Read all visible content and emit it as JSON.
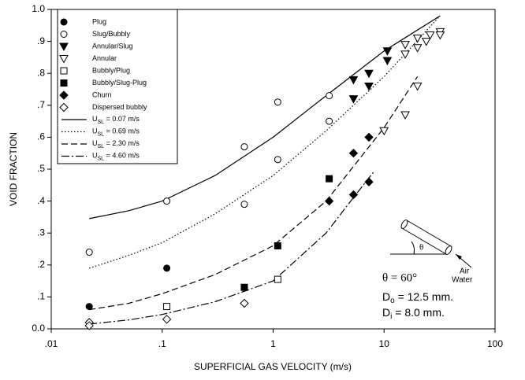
{
  "chart_data": {
    "type": "scatter",
    "xscale": "log",
    "x_label": "SUPERFICIAL GAS VELOCITY (m/s)",
    "y_label": "VOID FRACTION",
    "xlim": [
      0.01,
      100
    ],
    "ylim": [
      0,
      1
    ],
    "xticks": [
      {
        "value": 0.01,
        "label": ".01"
      },
      {
        "value": 0.1,
        "label": ".1"
      },
      1,
      10,
      100
    ],
    "yticks": [
      {
        "value": 0,
        "label": "0.0"
      },
      {
        "value": 0.1,
        "label": ".1"
      },
      {
        "value": 0.2,
        "label": ".2"
      },
      {
        "value": 0.3,
        "label": ".3"
      },
      {
        "value": 0.4,
        "label": ".4"
      },
      {
        "value": 0.5,
        "label": ".5"
      },
      {
        "value": 0.6,
        "label": ".6"
      },
      {
        "value": 0.7,
        "label": ".7"
      },
      {
        "value": 0.8,
        "label": ".8"
      },
      {
        "value": 0.9,
        "label": ".9"
      },
      {
        "value": 1,
        "label": "1.0"
      }
    ],
    "legend": "top-left",
    "series": [
      {
        "name": "Plug",
        "marker": "circle",
        "filled": true,
        "color": "#000000",
        "x": [
          0.022,
          0.11
        ],
        "values": [
          0.07,
          0.19
        ]
      },
      {
        "name": "Slug/Bubbly",
        "marker": "circle",
        "filled": false,
        "color": "#000000",
        "x": [
          0.022,
          0.11,
          0.55,
          0.55,
          1.1,
          1.1,
          3.2,
          3.2
        ],
        "values": [
          0.24,
          0.4,
          0.57,
          0.39,
          0.71,
          0.53,
          0.73,
          0.65
        ]
      },
      {
        "name": "Annular/Slug",
        "marker": "triangle-down",
        "filled": true,
        "color": "#000000",
        "x": [
          5.3,
          5.3,
          7.3,
          7.3,
          10.7,
          10.7
        ],
        "values": [
          0.78,
          0.72,
          0.8,
          0.76,
          0.87,
          0.84
        ]
      },
      {
        "name": "Annular",
        "marker": "triangle-down",
        "filled": false,
        "color": "#000000",
        "x": [
          10,
          15.5,
          15.5,
          15.5,
          20,
          20,
          20,
          24,
          26,
          32,
          32
        ],
        "values": [
          0.62,
          0.67,
          0.89,
          0.86,
          0.76,
          0.88,
          0.91,
          0.9,
          0.92,
          0.93,
          0.92
        ]
      },
      {
        "name": "Bubbly/Plug",
        "marker": "square",
        "filled": false,
        "color": "#000000",
        "x": [
          0.11,
          1.1
        ],
        "values": [
          0.07,
          0.155
        ]
      },
      {
        "name": "Bubbly/Slug-Plug",
        "marker": "square",
        "filled": true,
        "color": "#000000",
        "x": [
          0.55,
          1.1,
          3.2
        ],
        "values": [
          0.13,
          0.26,
          0.47
        ]
      },
      {
        "name": "Churn",
        "marker": "diamond",
        "filled": true,
        "color": "#000000",
        "x": [
          3.2,
          5.3,
          5.3,
          7.3,
          7.3
        ],
        "values": [
          0.4,
          0.55,
          0.42,
          0.6,
          0.46
        ]
      },
      {
        "name": "Dispersed bubbly",
        "marker": "diamond",
        "filled": false,
        "color": "#000000",
        "x": [
          0.022,
          0.022,
          0.11,
          0.55
        ],
        "values": [
          0.02,
          0.01,
          0.03,
          0.08
        ]
      }
    ],
    "lines": [
      {
        "name": "U",
        "name_sub": "SL",
        "name_rest": " = 0.07 m/s",
        "style": "solid",
        "color": "#000000",
        "x": [
          0.022,
          0.05,
          0.1,
          0.3,
          1,
          3,
          10,
          32
        ],
        "values": [
          0.345,
          0.37,
          0.4,
          0.48,
          0.6,
          0.73,
          0.87,
          0.98
        ]
      },
      {
        "name": "U",
        "name_sub": "SL",
        "name_rest": " = 0.69 m/s",
        "style": "dotted",
        "color": "#000000",
        "x": [
          0.022,
          0.05,
          0.1,
          0.3,
          1,
          3,
          10,
          32
        ],
        "values": [
          0.19,
          0.23,
          0.27,
          0.36,
          0.48,
          0.62,
          0.79,
          0.98
        ]
      },
      {
        "name": "U",
        "name_sub": "SL",
        "name_rest": " = 2.30 m/s",
        "style": "dashed",
        "color": "#000000",
        "x": [
          0.022,
          0.05,
          0.1,
          0.3,
          1,
          3,
          10,
          20
        ],
        "values": [
          0.06,
          0.08,
          0.11,
          0.17,
          0.26,
          0.4,
          0.63,
          0.79
        ]
      },
      {
        "name": "U",
        "name_sub": "SL",
        "name_rest": " = 4.60 m/s",
        "style": "dashdot",
        "color": "#000000",
        "x": [
          0.022,
          0.05,
          0.1,
          0.3,
          1,
          3,
          5,
          8
        ],
        "values": [
          0.015,
          0.028,
          0.045,
          0.085,
          0.15,
          0.3,
          0.4,
          0.49
        ]
      }
    ],
    "annotations": {
      "theta": "θ",
      "angle": "θ = 60°",
      "air": "Air",
      "water": "Water",
      "do_main": "D",
      "do_sub": "o",
      "do_rest": " = 12.5 mm.",
      "di_main": "D",
      "di_sub": "i",
      "di_rest": " =  8.0 mm."
    }
  }
}
